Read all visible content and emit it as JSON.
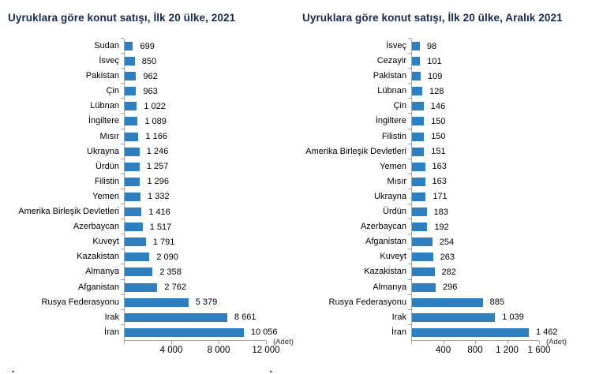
{
  "colors": {
    "bar": "#2e7fbf",
    "title": "#17294d",
    "axis": "#a3a3a3",
    "text": "#303030"
  },
  "chart_data": [
    {
      "type": "bar",
      "orientation": "horizontal",
      "title": "Uyruklara göre konut satışı, İlk 20 ülke, 2021",
      "unit_label": "(Adet)",
      "legend": "none",
      "grid": false,
      "categories": [
        "Sudan",
        "İsveç",
        "Pakistan",
        "Çin",
        "Lübnan",
        "İngiltere",
        "Mısır",
        "Ukrayna",
        "Ürdün",
        "Filistin",
        "Yemen",
        "Amerika Birleşik Devletleri",
        "Azerbaycan",
        "Kuveyt",
        "Kazakistan",
        "Almanya",
        "Afganistan",
        "Rusya Federasyonu",
        "Irak",
        "İran"
      ],
      "values": [
        699,
        850,
        962,
        963,
        1022,
        1089,
        1166,
        1246,
        1257,
        1296,
        1332,
        1416,
        1517,
        1791,
        2090,
        2358,
        2762,
        5379,
        8661,
        10056
      ],
      "value_labels": [
        "699",
        "850",
        "962",
        "963",
        "1 022",
        "1 089",
        "1 166",
        "1 246",
        "1 257",
        "1 296",
        "1 332",
        "1 416",
        "1 517",
        "1 791",
        "2 090",
        "2 358",
        "2 762",
        "5 379",
        "8 661",
        "10 056"
      ],
      "xlim": [
        0,
        12000
      ],
      "xticks": [
        0,
        4000,
        8000,
        12000
      ],
      "xtick_labels": [
        "",
        "4 000",
        "8 000",
        "12 000"
      ]
    },
    {
      "type": "bar",
      "orientation": "horizontal",
      "title": "Uyruklara göre konut satışı, İlk 20 ülke, Aralık 2021",
      "unit_label": "(Adet)",
      "legend": "none",
      "grid": false,
      "categories": [
        "İsveç",
        "Cezayir",
        "Pakistan",
        "Lübnan",
        "Çin",
        "İngiltere",
        "Filistin",
        "Amerika Birleşik Devletleri",
        "Yemen",
        "Mısır",
        "Ukrayna",
        "Ürdün",
        "Azerbaycan",
        "Afganistan",
        "Kuveyt",
        "Kazakistan",
        "Almanya",
        "Rusya Federasyonu",
        "Irak",
        "İran"
      ],
      "values": [
        98,
        101,
        109,
        128,
        146,
        150,
        150,
        151,
        163,
        163,
        171,
        183,
        192,
        254,
        263,
        282,
        296,
        885,
        1039,
        1462
      ],
      "value_labels": [
        "98",
        "101",
        "109",
        "128",
        "146",
        "150",
        "150",
        "151",
        "163",
        "163",
        "171",
        "183",
        "192",
        "254",
        "263",
        "282",
        "296",
        "885",
        "1 039",
        "1 462"
      ],
      "xlim": [
        0,
        1600
      ],
      "xticks": [
        0,
        400,
        800,
        1200,
        1600
      ],
      "xtick_labels": [
        "",
        "400",
        "800",
        "1 200",
        "1 600"
      ]
    }
  ]
}
